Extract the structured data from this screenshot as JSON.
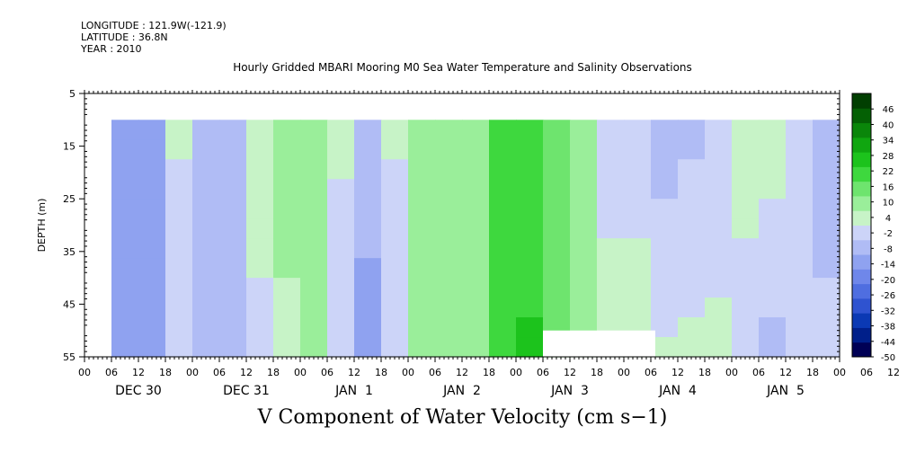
{
  "header": {
    "longitude": "LONGITUDE : 121.9W(-121.9)",
    "latitude": "LATITUDE : 36.8N",
    "year": "YEAR : 2010"
  },
  "title": "Hourly Gridded MBARI Mooring M0 Sea Water Temperature and Salinity Observations",
  "variable_title": "V Component of Water Velocity (cm s−1)",
  "chart_data": {
    "type": "heatmap",
    "ylabel": "DEPTH (m)",
    "y_ticks": [
      "5",
      "15",
      "25",
      "35",
      "45",
      "55"
    ],
    "ylim": [
      5,
      55
    ],
    "y_inverted": true,
    "data_depth_range": [
      10,
      55
    ],
    "x_hour_ticks": [
      "00",
      "06",
      "12",
      "18",
      "00",
      "06",
      "12",
      "18",
      "00",
      "06",
      "12",
      "18",
      "00",
      "06",
      "12",
      "18",
      "00",
      "06",
      "12",
      "18",
      "00",
      "06",
      "12",
      "18",
      "00",
      "06",
      "12",
      "18",
      "00",
      "06",
      "12",
      "18",
      "00"
    ],
    "x_day_labels": [
      "DEC 30",
      "DEC 31",
      "JAN  1",
      "JAN  2",
      "JAN  3",
      "JAN  4",
      "JAN  5"
    ],
    "xlim_hours": [
      0,
      168
    ],
    "data_time_range_hours": [
      6,
      168
    ],
    "colorbar": {
      "tick_labels": [
        "46",
        "40",
        "34",
        "28",
        "22",
        "16",
        "10",
        "4",
        "-2",
        "-8",
        "-14",
        "-20",
        "-26",
        "-32",
        "-38",
        "-44",
        "-50"
      ],
      "min": -50,
      "max": 52
    },
    "column_profile": {
      "hours": [
        6,
        12,
        18,
        24,
        30,
        36,
        42,
        48,
        54,
        60,
        66,
        72,
        78,
        84,
        90,
        96,
        102,
        108,
        114,
        120,
        126,
        132,
        138,
        144,
        150,
        156,
        162,
        168
      ],
      "v_upper": [
        -14,
        -12,
        2,
        -6,
        -8,
        6,
        8,
        8,
        2,
        -8,
        2,
        8,
        10,
        12,
        18,
        22,
        14,
        10,
        0,
        0,
        -8,
        -6,
        -2,
        2,
        4,
        -2,
        -6,
        4
      ],
      "v_lower": [
        -16,
        -12,
        -4,
        -8,
        -10,
        -2,
        6,
        8,
        -2,
        -12,
        -4,
        8,
        10,
        12,
        20,
        24,
        18,
        10,
        2,
        2,
        2,
        2,
        2,
        0,
        -6,
        -2,
        -4,
        2
      ]
    },
    "missing_block": {
      "hours": [
        102,
        127
      ],
      "depth": [
        50,
        55
      ]
    }
  }
}
